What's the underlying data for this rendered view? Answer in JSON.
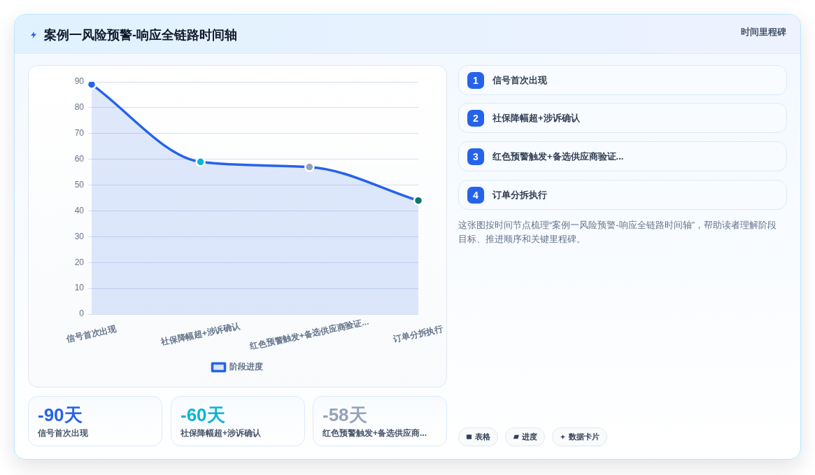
{
  "chart_data": [
    {
      "type": "area",
      "title": "案例一风险预警-响应全链路时间轴",
      "categories": [
        "信号首次出现",
        "社保降幅超+涉诉确认",
        "红色预警触发+备选供应商验证...",
        "订单分拆执行"
      ],
      "series": [
        {
          "name": "阶段进度",
          "color": "#2563eb",
          "colors": [
            "#2563eb",
            "#06b6d4",
            "#94a3b8",
            "#0f766e"
          ],
          "values": [
            89,
            59,
            57,
            44
          ]
        }
      ],
      "ylim": [
        0,
        90
      ],
      "yticks": [
        0,
        10,
        20,
        30,
        40,
        50,
        60,
        70,
        80,
        90
      ],
      "grid": "y",
      "legend": "bottom",
      "marker": "circle"
    },
    {
      "type": "other",
      "categories": [
        "信号首次出现",
        "社保降幅超+涉诉确认",
        "红色预警触发+备选供应商..."
      ],
      "value_labels": [
        "-90天",
        "-60天",
        "-58天"
      ]
    },
    {
      "type": "other",
      "title": "时间里程碑",
      "categories": [
        "信号首次出现"
      ],
      "value_labels": [
        "1"
      ]
    },
    {
      "type": "other",
      "categories": [
        "社保降幅超+涉诉确认"
      ],
      "value_labels": [
        "2"
      ]
    },
    {
      "type": "other",
      "categories": [
        "红色预警触发+备选供应商验证..."
      ],
      "value_labels": [
        "3"
      ]
    },
    {
      "type": "other",
      "categories": [
        "订单分拆执行"
      ],
      "value_labels": [
        "4"
      ]
    },
    {
      "type": "other",
      "annotations": [
        "这张图按时间节点梳理“案例一风险预警-响应全链路时间轴”，帮助读者理解阶段目标、推进顺序和关键里程碑。",
        "表格",
        "进度",
        "数据卡片"
      ]
    }
  ]
}
